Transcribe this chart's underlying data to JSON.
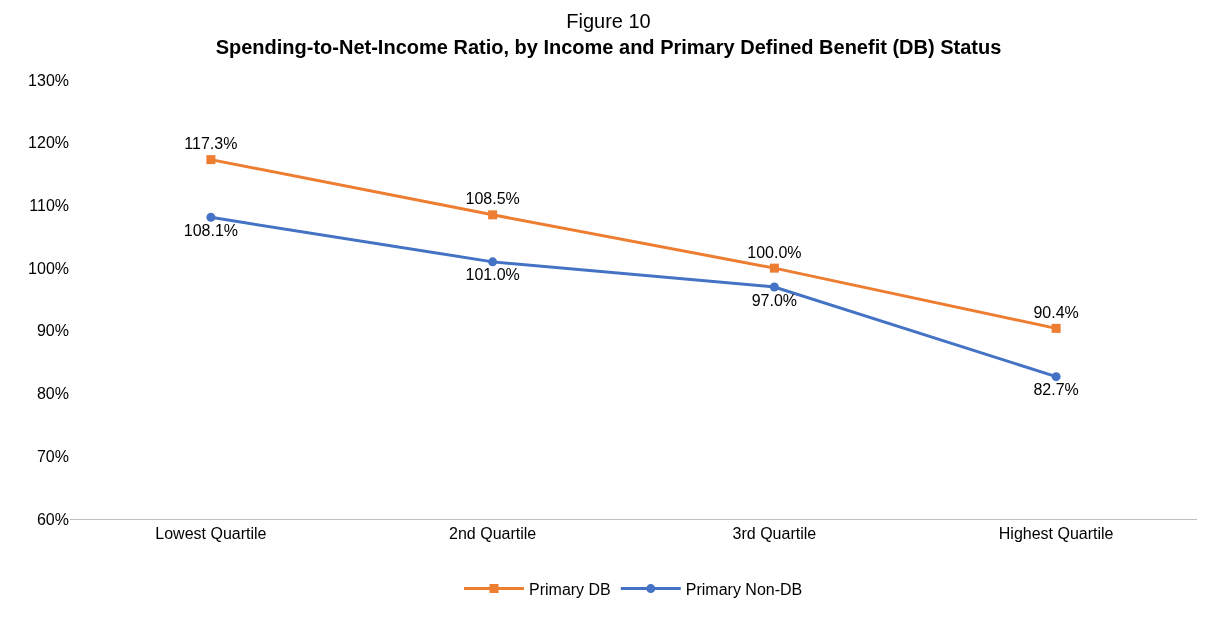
{
  "chart_data": {
    "type": "line",
    "title": "Figure 10",
    "subtitle": "Spending-to-Net-Income Ratio, by Income and Primary Defined Benefit (DB) Status",
    "categories": [
      "Lowest Quartile",
      "2nd Quartile",
      "3rd Quartile",
      "Highest Quartile"
    ],
    "series": [
      {
        "name": "Primary DB",
        "color": "#ed7d31",
        "marker": "square",
        "values": [
          117.3,
          108.5,
          100.0,
          90.4
        ],
        "value_labels": [
          "117.3%",
          "108.5%",
          "100.0%",
          "90.4%"
        ]
      },
      {
        "name": "Primary Non-DB",
        "color": "#4472c4",
        "marker": "circle",
        "values": [
          108.1,
          101.0,
          97.0,
          82.7
        ],
        "value_labels": [
          "108.1%",
          "101.0%",
          "97.0%",
          "82.7%"
        ]
      }
    ],
    "ylim": [
      60,
      130
    ],
    "yticks": [
      {
        "value": 60,
        "label": "60%"
      },
      {
        "value": 70,
        "label": "70%"
      },
      {
        "value": 80,
        "label": "80%"
      },
      {
        "value": 90,
        "label": "90%"
      },
      {
        "value": 100,
        "label": "100%"
      },
      {
        "value": 110,
        "label": "110%"
      },
      {
        "value": 120,
        "label": "120%"
      },
      {
        "value": 130,
        "label": "130%"
      }
    ],
    "grid": false,
    "legend": "bottom",
    "line_style": "solid"
  }
}
